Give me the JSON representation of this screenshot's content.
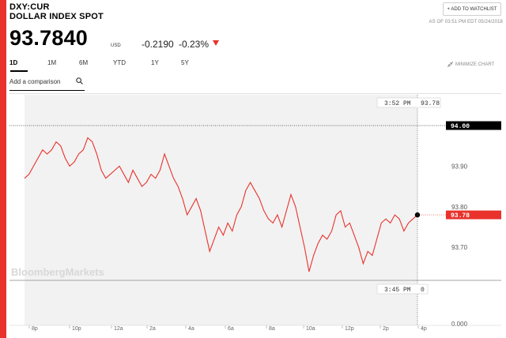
{
  "header": {
    "ticker": "DXY:CUR",
    "name": "DOLLAR INDEX SPOT",
    "watchlist_label": "+ ADD TO WATCHLIST",
    "as_of": "AS OF 03:51 PM EDT 05/24/2018",
    "price": "93.7840",
    "currency": "USD",
    "change": "-0.2190",
    "change_pct": "-0.23%",
    "direction_icon": "down-triangle-icon"
  },
  "tabs": [
    "1D",
    "1M",
    "6M",
    "YTD",
    "1Y",
    "5Y"
  ],
  "active_tab": "1D",
  "minimize_label": "MINIMIZE CHART",
  "compare_placeholder": "Add a comparison",
  "watermark": "BloombergMarkets",
  "colors": {
    "accent": "#e8322b",
    "line": "#e8322b",
    "fill": "#f2f2f2"
  },
  "chart_data": {
    "type": "line",
    "series": [
      {
        "values": [
          93.87,
          93.88,
          93.9,
          93.92,
          93.94,
          93.93,
          93.94,
          93.96,
          93.95,
          93.92,
          93.9,
          93.91,
          93.93,
          93.94,
          93.97,
          93.96,
          93.93,
          93.89,
          93.87,
          93.88,
          93.89,
          93.9,
          93.88,
          93.86,
          93.89,
          93.87,
          93.85,
          93.86,
          93.88,
          93.87,
          93.89,
          93.93,
          93.9,
          93.87,
          93.85,
          93.82,
          93.78,
          93.8,
          93.82,
          93.79,
          93.74,
          93.69,
          93.72,
          93.75,
          93.73,
          93.76,
          93.74,
          93.78,
          93.8,
          93.84,
          93.86,
          93.84,
          93.82,
          93.79,
          93.77,
          93.76,
          93.78,
          93.75,
          93.79,
          93.83,
          93.8,
          93.75,
          93.7,
          93.64,
          93.68,
          93.71,
          93.73,
          93.72,
          93.74,
          93.78,
          93.79,
          93.75,
          93.76,
          93.73,
          93.7,
          93.66,
          93.69,
          93.68,
          93.72,
          93.76,
          93.77,
          93.76,
          93.78,
          93.77,
          93.74,
          93.76,
          93.77,
          93.78
        ],
        "last": 93.78
      }
    ],
    "x_ticks": [
      "8p",
      "10p",
      "12a",
      "2a",
      "4a",
      "6a",
      "8a",
      "10a",
      "12p",
      "2p",
      "4p"
    ],
    "y_ticks": [
      93.7,
      93.8,
      93.9,
      0.0
    ],
    "y_tick_labels": [
      "93.70",
      "93.80",
      "93.90",
      "0.000"
    ],
    "ylim": [
      93.62,
      94.02
    ],
    "reference_label": "94.00",
    "last_label": "93.78",
    "crosshair_time": "3:52 PM",
    "crosshair_value": "93.78",
    "volume_time": "3:45 PM",
    "volume_value": "0"
  }
}
